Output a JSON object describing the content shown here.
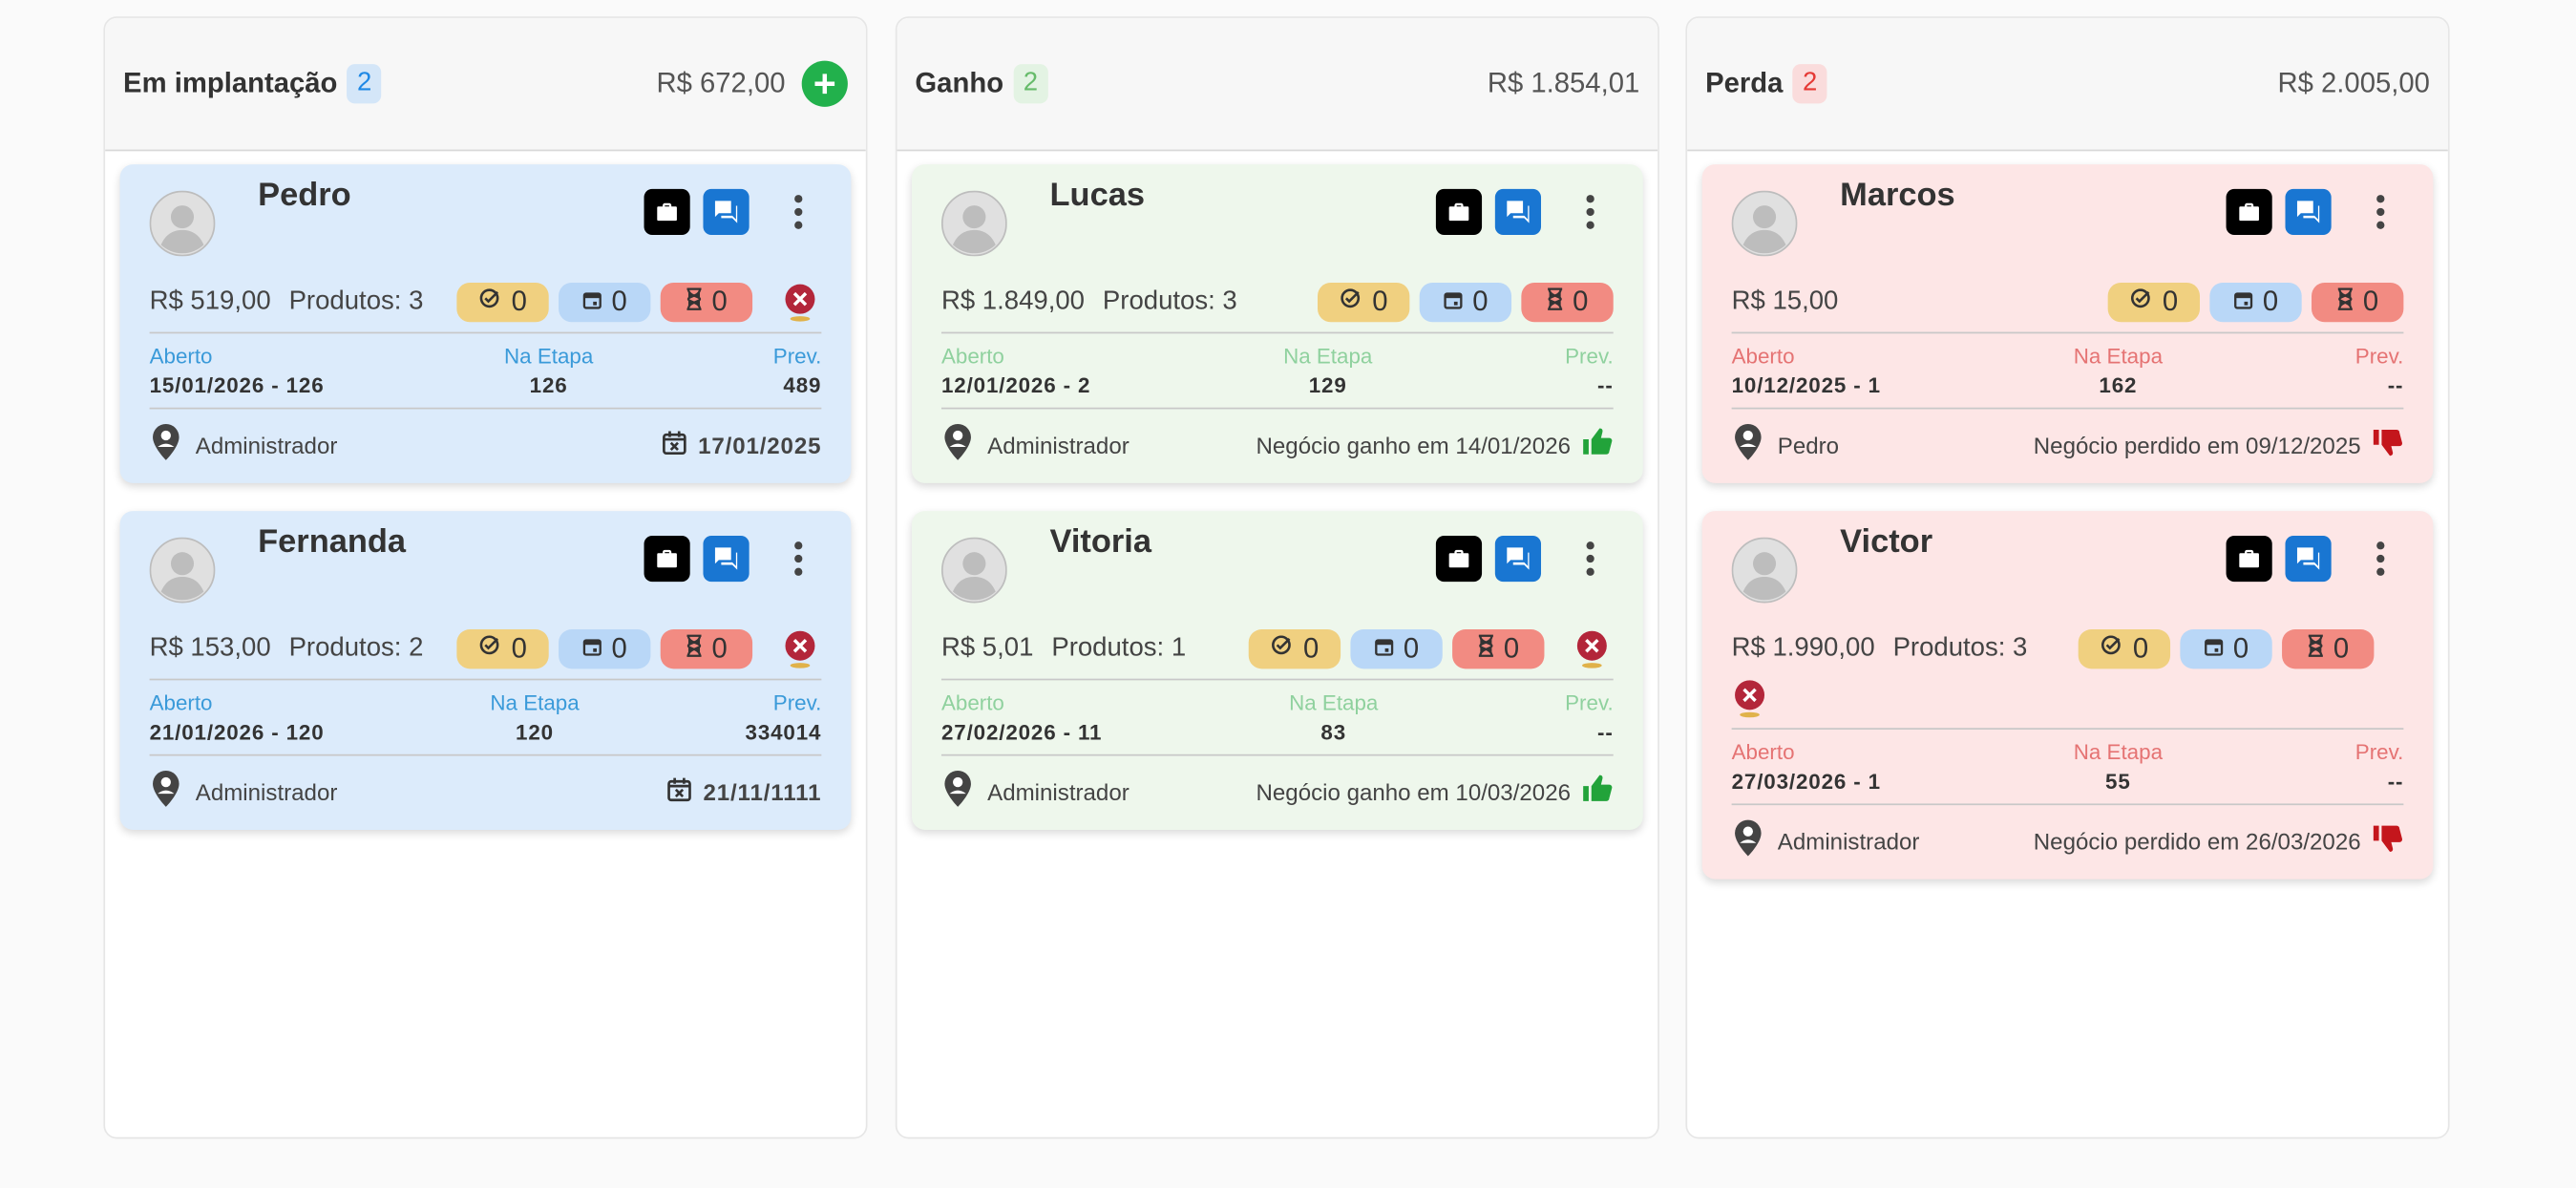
{
  "labels": {
    "opened": "Aberto",
    "stage": "Na Etapa",
    "prev": "Prev."
  },
  "columns": [
    {
      "title": "Em implantação",
      "count": 2,
      "total": "R$ 672,00",
      "add_button": true,
      "card_color": "#dcebfb",
      "label_color": "#3a9ad9",
      "count_color": "#1e88e5",
      "count_bg": "#d4e6f8",
      "cards": [
        {
          "name": "Pedro",
          "value": "R$ 519,00",
          "products": "Produtos: 3",
          "badges": [
            0,
            0,
            0
          ],
          "overdue": true,
          "opened": "15/01/2026 - 126",
          "stage": 126,
          "prev": 489,
          "owner": "Administrador",
          "due": "17/01/2025"
        },
        {
          "name": "Fernanda",
          "value": "R$ 153,00",
          "products": "Produtos: 2",
          "badges": [
            0,
            0,
            0
          ],
          "overdue": true,
          "opened": "21/01/2026 - 120",
          "stage": 120,
          "prev": 334014,
          "owner": "Administrador",
          "due": "21/11/1111"
        }
      ]
    },
    {
      "title": "Ganho",
      "count": 2,
      "total": "R$ 1.854,01",
      "add_button": false,
      "card_color": "#eef7ec",
      "label_color": "#8fd19e",
      "count_color": "#66bb6a",
      "count_bg": "#e3f3e3",
      "cards": [
        {
          "name": "Lucas",
          "value": "R$ 1.849,00",
          "products": "Produtos: 3",
          "badges": [
            0,
            0,
            0
          ],
          "overdue": false,
          "opened": "12/01/2026 - 2",
          "stage": 129,
          "prev": "--",
          "owner": "Administrador",
          "status": "Negócio ganho em 14/01/2026"
        },
        {
          "name": "Vitoria",
          "value": "R$ 5,01",
          "products": "Produtos: 1",
          "badges": [
            0,
            0,
            0
          ],
          "overdue": true,
          "opened": "27/02/2026 - 11",
          "stage": 83,
          "prev": "--",
          "owner": "Administrador",
          "status": "Negócio ganho em 10/03/2026"
        }
      ]
    },
    {
      "title": "Perda",
      "count": 2,
      "total": "R$ 2.005,00",
      "add_button": false,
      "card_color": "#fde6e6",
      "label_color": "#e57373",
      "count_color": "#e53935",
      "count_bg": "#fadcdc",
      "cards": [
        {
          "name": "Marcos",
          "value": "R$ 15,00",
          "badges": [
            0,
            0,
            0
          ],
          "overdue": false,
          "opened": "10/12/2025 - 1",
          "stage": 162,
          "prev": "--",
          "owner": "Pedro",
          "status": "Negócio perdido em 09/12/2025"
        },
        {
          "name": "Victor",
          "value": "R$ 1.990,00",
          "products": "Produtos: 3",
          "badges": [
            0,
            0,
            0
          ],
          "overdue": true,
          "opened": "27/03/2026 - 1",
          "stage": 55,
          "prev": "--",
          "owner": "Administrador",
          "status": "Negócio perdido em 26/03/2026"
        }
      ]
    }
  ]
}
